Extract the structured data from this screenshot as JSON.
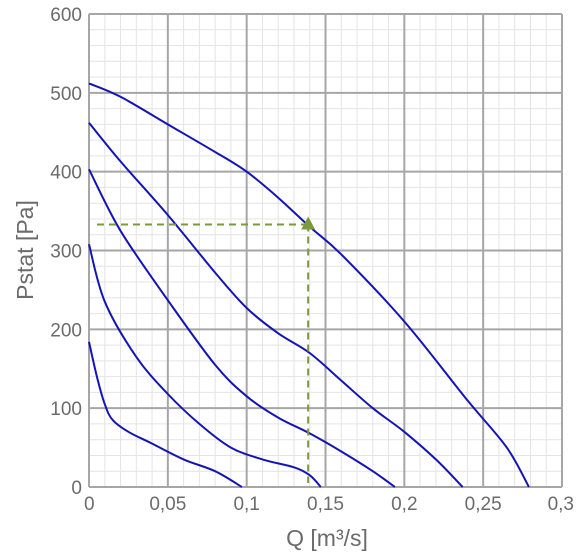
{
  "chart_data": {
    "type": "line",
    "xlabel": "Q [m³/s]",
    "ylabel": "Pstat [Pa]",
    "xlim": [
      0,
      0.3
    ],
    "ylim": [
      0,
      600
    ],
    "grid": true,
    "x_ticks": [
      {
        "value": 0,
        "label": "0"
      },
      {
        "value": 0.05,
        "label": "0,05"
      },
      {
        "value": 0.1,
        "label": "0,1"
      },
      {
        "value": 0.15,
        "label": "0,15"
      },
      {
        "value": 0.2,
        "label": "0,2"
      },
      {
        "value": 0.25,
        "label": "0,25"
      },
      {
        "value": 0.3,
        "label": "0,3"
      }
    ],
    "y_ticks": [
      {
        "value": 0,
        "label": "0"
      },
      {
        "value": 100,
        "label": "100"
      },
      {
        "value": 200,
        "label": "200"
      },
      {
        "value": 300,
        "label": "300"
      },
      {
        "value": 400,
        "label": "400"
      },
      {
        "value": 500,
        "label": "500"
      },
      {
        "value": 600,
        "label": "600"
      }
    ],
    "series_color": "#1414b4",
    "series": [
      {
        "x": [
          0,
          0.02,
          0.05,
          0.08,
          0.1,
          0.12,
          0.14,
          0.16,
          0.2,
          0.24,
          0.265,
          0.279
        ],
        "y": [
          512,
          495,
          460,
          425,
          400,
          367,
          330,
          295,
          210,
          110,
          50,
          0
        ]
      },
      {
        "x": [
          0,
          0.02,
          0.05,
          0.08,
          0.1,
          0.12,
          0.14,
          0.16,
          0.18,
          0.2,
          0.22,
          0.237
        ],
        "y": [
          462,
          413,
          345,
          272,
          227,
          195,
          170,
          135,
          100,
          70,
          35,
          0
        ]
      },
      {
        "x": [
          0,
          0.02,
          0.05,
          0.08,
          0.1,
          0.12,
          0.14,
          0.16,
          0.18,
          0.194
        ],
        "y": [
          403,
          325,
          237,
          155,
          115,
          88,
          68,
          45,
          20,
          0
        ]
      },
      {
        "x": [
          0,
          0.01,
          0.03,
          0.05,
          0.07,
          0.09,
          0.11,
          0.13,
          0.14,
          0.147
        ],
        "y": [
          308,
          235,
          165,
          118,
          80,
          50,
          35,
          25,
          15,
          0
        ]
      },
      {
        "x": [
          0,
          0.005,
          0.01,
          0.015,
          0.025,
          0.04,
          0.06,
          0.08,
          0.097
        ],
        "y": [
          184,
          140,
          105,
          85,
          70,
          55,
          35,
          20,
          0
        ]
      }
    ],
    "operating_point": {
      "x": 0.139,
      "y": 333,
      "color": "#7a9a3c"
    }
  }
}
